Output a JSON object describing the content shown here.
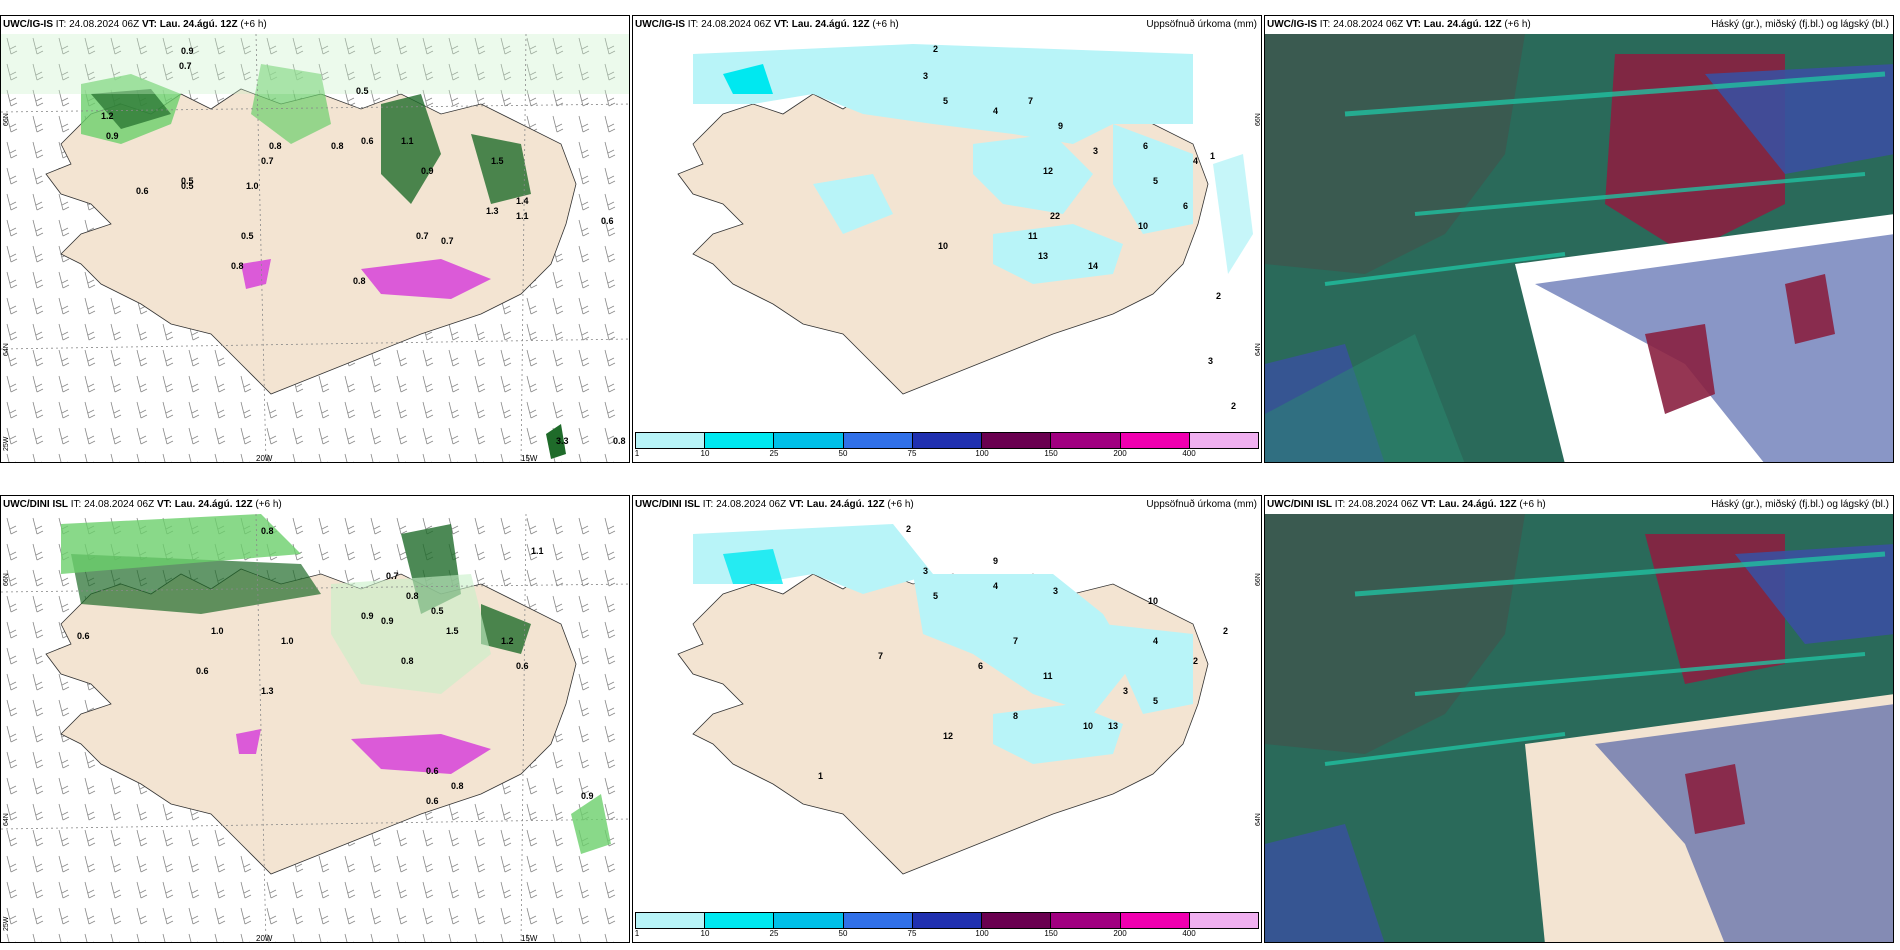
{
  "panels": [
    {
      "id": "p1",
      "model": "UWC/IG-IS",
      "it_label": "IT:",
      "it_value": "24.08.2024 06Z",
      "vt_label": "VT:",
      "vt_value": "Lau. 24.ágú. 12Z",
      "lead": "(+6 h)",
      "right_title": "",
      "type": "wind-precip",
      "lat_labels": [
        "66N",
        "64N",
        "25W"
      ],
      "lon_labels": [
        "20W",
        "15W"
      ],
      "values": [
        "0.9",
        "0.7",
        "1.2",
        "0.9",
        "0.7",
        "0.8",
        "1.1",
        "1.5",
        "0.9",
        "0.8",
        "0.6",
        "0.5",
        "0.5",
        "1.0",
        "0.8",
        "0.7",
        "1.4",
        "1.3",
        "1.1",
        "0.7",
        "0.5",
        "0.5",
        "0.8",
        "0.6",
        "3.3",
        "0.8",
        "0.6"
      ]
    },
    {
      "id": "p2",
      "model": "UWC/IG-IS",
      "it_label": "IT:",
      "it_value": "24.08.2024 06Z",
      "vt_label": "VT:",
      "vt_value": "Lau. 24.ágú. 12Z",
      "lead": "(+6 h)",
      "right_title": "Uppsöfnuð úrkoma (mm)",
      "type": "precip-accum",
      "lat_labels": [
        "66N",
        "64N"
      ],
      "values": [
        "2",
        "3",
        "5",
        "4",
        "7",
        "9",
        "3",
        "6",
        "12",
        "22",
        "11",
        "13",
        "14",
        "10",
        "4",
        "2",
        "1",
        "6",
        "5",
        "3",
        "2",
        "10"
      ],
      "legend": [
        "1",
        "10",
        "25",
        "50",
        "75",
        "100",
        "150",
        "200",
        "400"
      ]
    },
    {
      "id": "p3",
      "model": "UWC/IG-IS",
      "it_label": "IT:",
      "it_value": "24.08.2024 06Z",
      "vt_label": "VT:",
      "vt_value": "Lau. 24.ágú. 12Z",
      "lead": "(+6 h)",
      "right_title": "Háský (gr.), miðský (fj.bl.) og lágský (bl.)",
      "type": "clouds"
    },
    {
      "id": "p4",
      "model": "UWC/DINI ISL",
      "it_label": "IT:",
      "it_value": "24.08.2024 06Z",
      "vt_label": "VT:",
      "vt_value": "Lau. 24.ágú. 12Z",
      "lead": "(+6 h)",
      "right_title": "",
      "type": "wind-precip",
      "lat_labels": [
        "66N",
        "64N",
        "25W"
      ],
      "lon_labels": [
        "20W",
        "15W"
      ],
      "values": [
        "0.6",
        "1.0",
        "0.8",
        "0.9",
        "0.6",
        "1.3",
        "1.0",
        "0.7",
        "0.8",
        "0.5",
        "1.5",
        "1.2",
        "0.6",
        "0.9",
        "0.8",
        "0.6",
        "0.8",
        "0.9",
        "0.6",
        "1.1"
      ]
    },
    {
      "id": "p5",
      "model": "UWC/DINI ISL",
      "it_label": "IT:",
      "it_value": "24.08.2024 06Z",
      "vt_label": "VT:",
      "vt_value": "Lau. 24.ágú. 12Z",
      "lead": "(+6 h)",
      "right_title": "Uppsöfnuð úrkoma (mm)",
      "type": "precip-accum",
      "lat_labels": [
        "66N",
        "64N"
      ],
      "values": [
        "2",
        "3",
        "5",
        "4",
        "7",
        "9",
        "3",
        "6",
        "11",
        "10",
        "12",
        "13",
        "8",
        "4",
        "2",
        "1",
        "7",
        "5",
        "3",
        "2",
        "10"
      ],
      "legend": [
        "1",
        "10",
        "25",
        "50",
        "75",
        "100",
        "150",
        "200",
        "400"
      ]
    },
    {
      "id": "p6",
      "model": "UWC/DINI ISL",
      "it_label": "IT:",
      "it_value": "24.08.2024 06Z",
      "vt_label": "VT:",
      "vt_value": "Lau. 24.ágú. 12Z",
      "lead": "(+6 h)",
      "right_title": "Háský (gr.), miðský (fj.bl.) og lágský (bl.)",
      "type": "clouds"
    }
  ],
  "colors": {
    "land": "#f3e4d2",
    "precip_light": "#c8f0c8",
    "precip_mid": "#6ccf6c",
    "precip_dark": "#1f6b2a",
    "precip_extreme": "#d84ad8",
    "accum_light": "#b8f4f8",
    "legend": [
      "#b8f4f8",
      "#00e8f0",
      "#00c0e8",
      "#3070e8",
      "#2030b0",
      "#6a0050",
      "#a00080",
      "#f000b0",
      "#f0b0f0"
    ],
    "cloud_high": "#2a6a5a",
    "cloud_mid": "#3a50a0",
    "cloud_low": "#8a2040",
    "cloud_teal": "#20c0a0"
  }
}
